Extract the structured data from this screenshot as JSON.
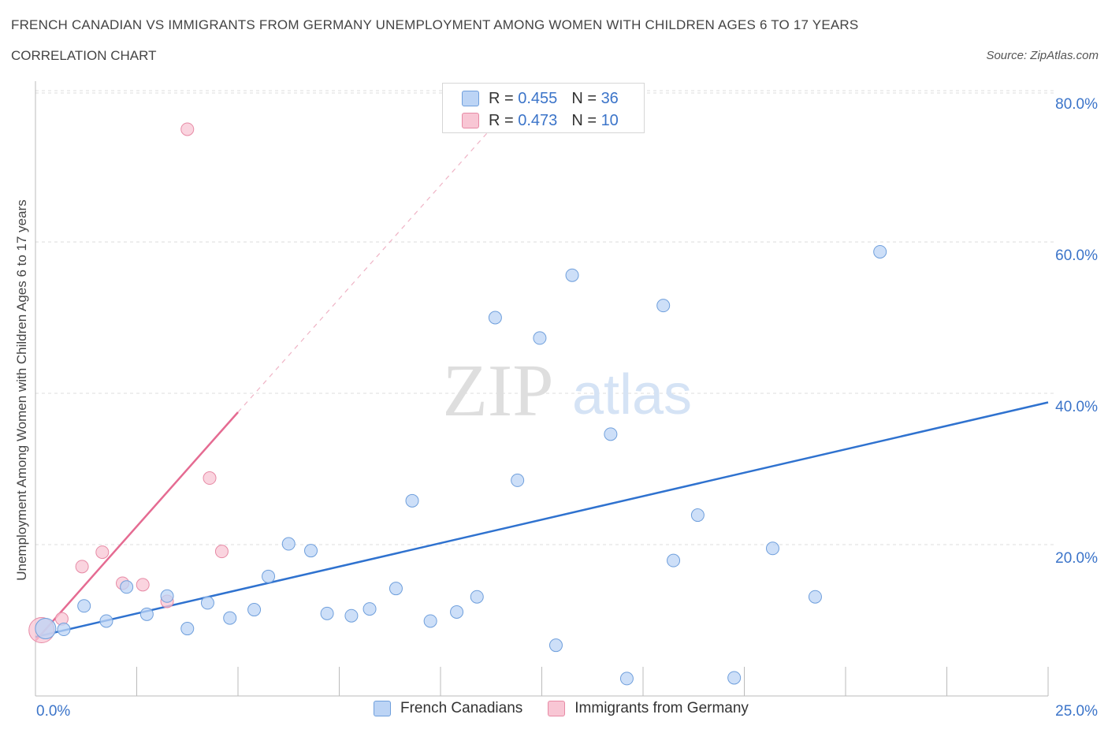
{
  "header": {
    "title": "FRENCH CANADIAN VS IMMIGRANTS FROM GERMANY UNEMPLOYMENT AMONG WOMEN WITH CHILDREN AGES 6 TO 17 YEARS",
    "subtitle": "CORRELATION CHART",
    "source": "Source: ZipAtlas.com"
  },
  "watermark": {
    "zip": "ZIP",
    "atlas": "atlas"
  },
  "legend": {
    "series1": {
      "r_label": "R = ",
      "r_value": "0.455",
      "n_label": "N = ",
      "n_value": "36"
    },
    "series2": {
      "r_label": "R = ",
      "r_value": "0.473",
      "n_label": "N = ",
      "n_value": "10"
    }
  },
  "colors": {
    "blue_fill": "#bcd4f5",
    "blue_stroke": "#6f9fdc",
    "blue_line": "#2f72cf",
    "pink_fill": "#f8c6d4",
    "pink_stroke": "#e78aa5",
    "pink_line": "#e56b92",
    "tick_label": "#3b74c9",
    "grid": "#dddddd"
  },
  "chart_data": {
    "type": "scatter",
    "title": "FRENCH CANADIAN VS IMMIGRANTS FROM GERMANY UNEMPLOYMENT AMONG WOMEN WITH CHILDREN AGES 6 TO 17 YEARS",
    "ylabel": "Unemployment Among Women with Children Ages 6 to 17 years",
    "xlabel": "",
    "xlim": [
      0,
      25
    ],
    "ylim": [
      0,
      80
    ],
    "x_tick_labels": [
      "0.0%",
      "25.0%"
    ],
    "y_ticks": [
      20,
      40,
      60,
      80
    ],
    "y_tick_labels": [
      "20.0%",
      "40.0%",
      "60.0%",
      "80.0%"
    ],
    "grid": "horizontal dashed",
    "legend_position": "top-center",
    "series": [
      {
        "name": "French Canadians",
        "color": "#bcd4f5",
        "trend": {
          "x": [
            0,
            25
          ],
          "y": [
            7.8,
            38.8
          ]
        },
        "points": [
          [
            0.25,
            8.9
          ],
          [
            0.7,
            8.8
          ],
          [
            1.2,
            11.9
          ],
          [
            1.75,
            9.9
          ],
          [
            2.25,
            14.4
          ],
          [
            2.75,
            10.8
          ],
          [
            3.25,
            13.2
          ],
          [
            3.75,
            8.9
          ],
          [
            4.25,
            12.3
          ],
          [
            4.8,
            10.3
          ],
          [
            5.4,
            11.4
          ],
          [
            5.75,
            15.8
          ],
          [
            6.25,
            20.1
          ],
          [
            6.8,
            19.2
          ],
          [
            7.2,
            10.9
          ],
          [
            7.8,
            10.6
          ],
          [
            8.25,
            11.5
          ],
          [
            8.9,
            14.2
          ],
          [
            9.3,
            25.8
          ],
          [
            9.75,
            9.9
          ],
          [
            10.4,
            11.1
          ],
          [
            10.9,
            13.1
          ],
          [
            11.35,
            50.0
          ],
          [
            11.9,
            28.5
          ],
          [
            12.45,
            47.3
          ],
          [
            12.85,
            6.7
          ],
          [
            13.25,
            55.6
          ],
          [
            14.2,
            34.6
          ],
          [
            14.6,
            2.3
          ],
          [
            15.5,
            51.6
          ],
          [
            15.75,
            17.9
          ],
          [
            16.35,
            23.9
          ],
          [
            17.25,
            2.4
          ],
          [
            18.2,
            19.5
          ],
          [
            19.25,
            13.1
          ],
          [
            20.85,
            58.7
          ]
        ]
      },
      {
        "name": "Immigrants from Germany",
        "color": "#f8c6d4",
        "trend": {
          "x": [
            0,
            5
          ],
          "y": [
            7.3,
            37.5
          ],
          "dashed_to": {
            "x": 11.5,
            "y": 76.5
          }
        },
        "points": [
          [
            0.15,
            8.7
          ],
          [
            0.65,
            10.2
          ],
          [
            1.15,
            17.1
          ],
          [
            1.65,
            19.0
          ],
          [
            2.15,
            14.9
          ],
          [
            2.65,
            14.7
          ],
          [
            3.25,
            12.5
          ],
          [
            3.75,
            74.9
          ],
          [
            4.3,
            28.8
          ],
          [
            4.6,
            19.1
          ]
        ]
      }
    ]
  },
  "bottom_legend": {
    "items": [
      {
        "label": "French Canadians"
      },
      {
        "label": "Immigrants from Germany"
      }
    ]
  }
}
